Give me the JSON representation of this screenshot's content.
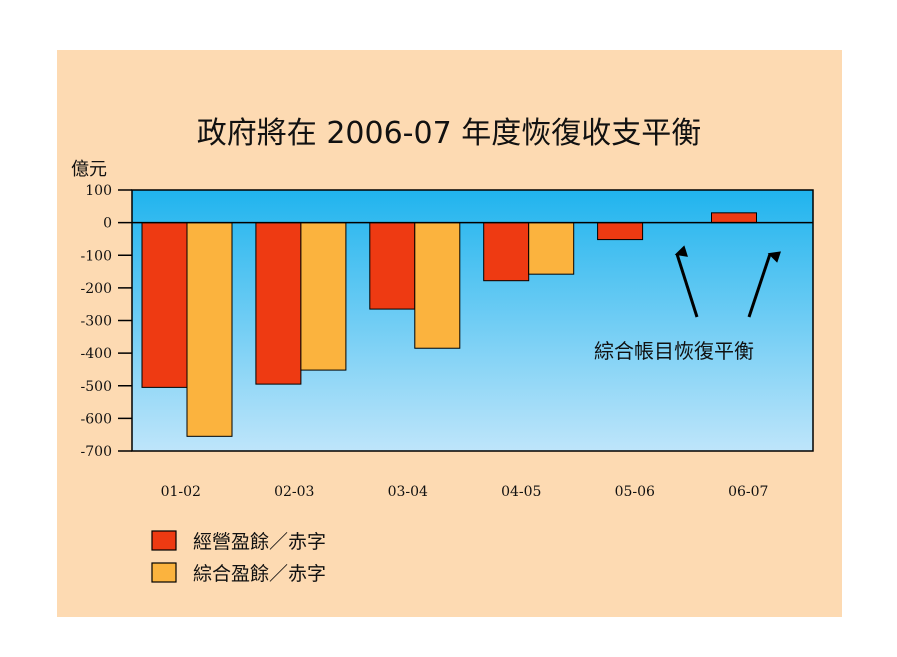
{
  "colors": {
    "panel_bg": "#FDDAB2",
    "plot_top": "#20B4EE",
    "plot_bottom": "#BEE5FA",
    "operating": "#EE3A12",
    "consolidated": "#FBB33E",
    "axis": "#000000"
  },
  "chart_data": {
    "type": "bar",
    "title": "政府將在 2006-07 年度恢復收支平衡",
    "ylabel": "億元",
    "xlabel": "",
    "ylim": [
      -700,
      100
    ],
    "yticks": [
      100,
      0,
      -100,
      -200,
      -300,
      -400,
      -500,
      -600,
      -700
    ],
    "categories": [
      "01-02",
      "02-03",
      "03-04",
      "04-05",
      "05-06",
      "06-07"
    ],
    "series": [
      {
        "name": "經營盈餘／赤字",
        "color": "#EE3A12",
        "values": [
          -505,
          -495,
          -265,
          -178,
          -52,
          30
        ]
      },
      {
        "name": "綜合盈餘／赤字",
        "color": "#FBB33E",
        "values": [
          -655,
          -452,
          -385,
          -158,
          null,
          null
        ]
      }
    ],
    "annotation": "綜合帳目恢復平衡",
    "grid": false,
    "legend_position": "bottom-left"
  }
}
